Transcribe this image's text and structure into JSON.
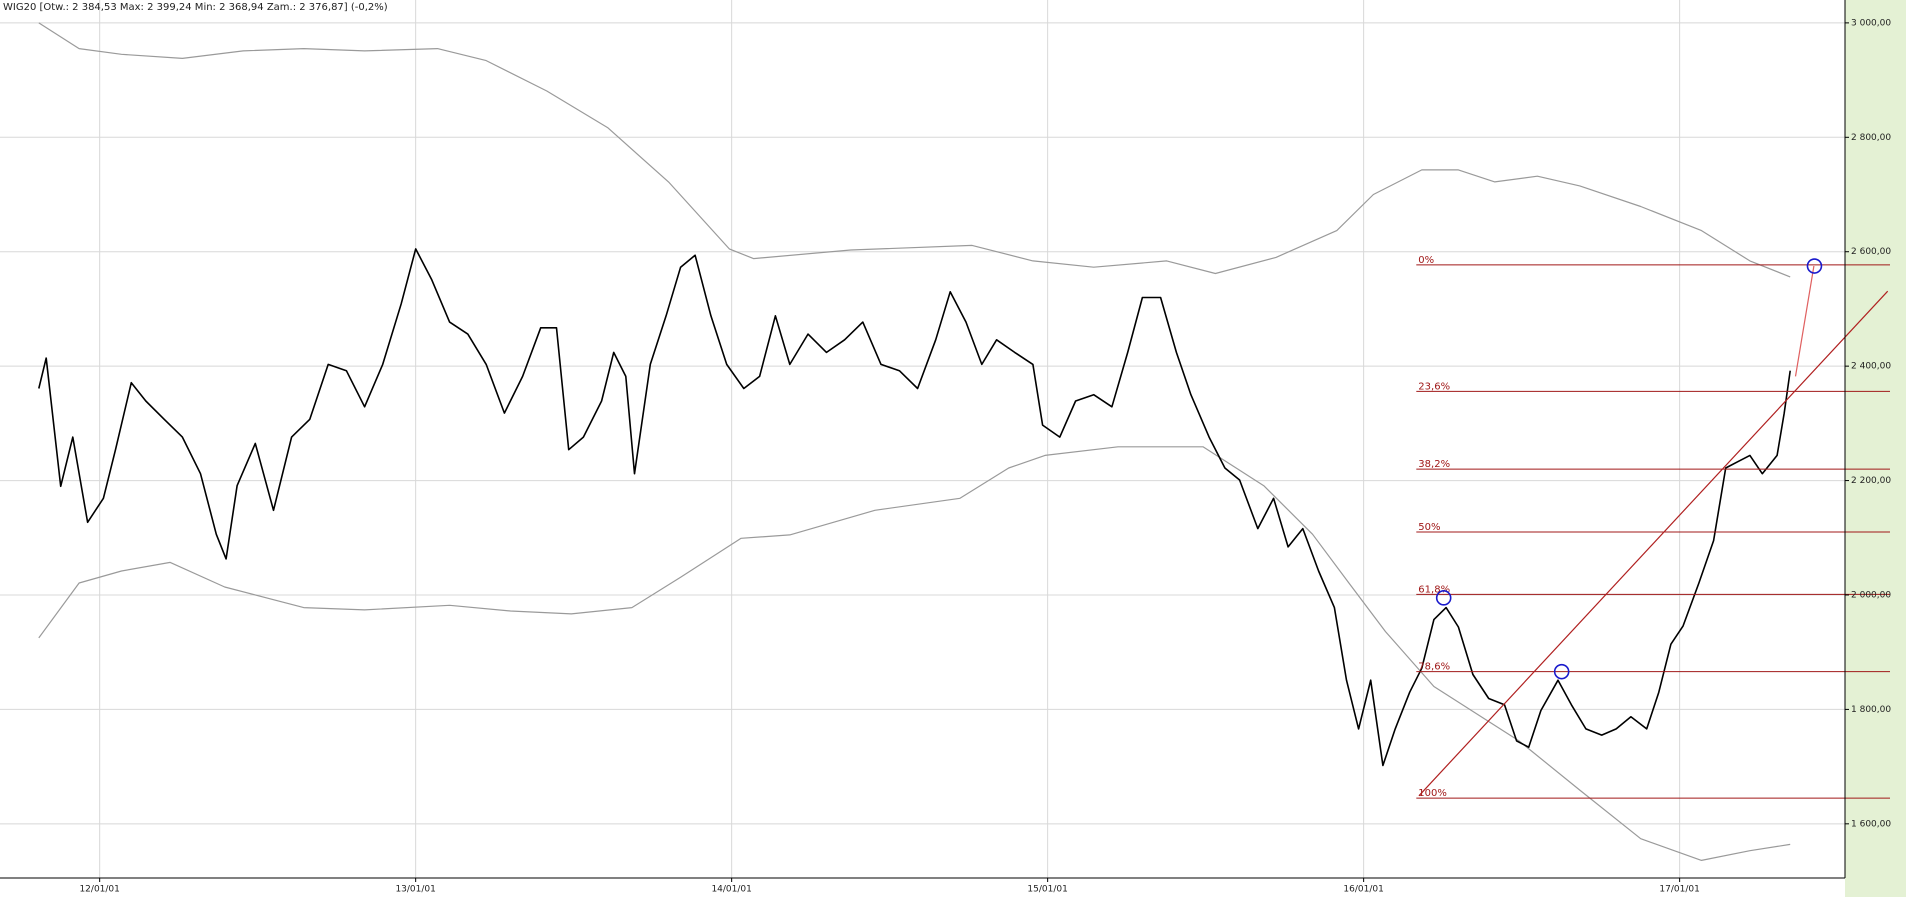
{
  "chart_data": {
    "type": "line",
    "title": "WIG20 [Otw.: 2 384,53  Max: 2 399,24  Min: 2 368,94  Zam.: 2 376,87] (-0,2%)",
    "xlim": [
      -3.785,
      66.28
    ],
    "ylim": [
      1506,
      3040
    ],
    "xticks": [
      {
        "value": 0,
        "label": "12/01/01"
      },
      {
        "value": 12,
        "label": "13/01/01"
      },
      {
        "value": 24,
        "label": "14/01/01"
      },
      {
        "value": 36,
        "label": "15/01/01"
      },
      {
        "value": 48,
        "label": "16/01/01"
      },
      {
        "value": 60,
        "label": "17/01/01"
      }
    ],
    "yticks": [
      {
        "value": 1600,
        "label": "1 600,00"
      },
      {
        "value": 1800,
        "label": "1 800,00"
      },
      {
        "value": 2000,
        "label": "2 000,00"
      },
      {
        "value": 2200,
        "label": "2 200,00"
      },
      {
        "value": 2400,
        "label": "2 400,00"
      },
      {
        "value": 2600,
        "label": "2 600,00"
      },
      {
        "value": 2800,
        "label": "2 800,00"
      },
      {
        "value": 3000,
        "label": "3 000,00"
      }
    ],
    "grid": true,
    "series": [
      {
        "color": "#000000",
        "x": [
          -2.31,
          -2.03,
          -1.48,
          -1.02,
          -0.46,
          0.14,
          0.6,
          1.2,
          1.75,
          2.45,
          3.14,
          3.83,
          4.43,
          4.8,
          5.22,
          5.91,
          6.6,
          7.29,
          7.98,
          8.68,
          9.37,
          10.06,
          10.75,
          11.45,
          12.0,
          12.6,
          13.29,
          13.98,
          14.68,
          15.37,
          16.06,
          16.75,
          17.35,
          17.81,
          18.37,
          19.06,
          19.52,
          19.98,
          20.31,
          20.91,
          21.51,
          22.06,
          22.61,
          23.21,
          23.81,
          24.46,
          25.06,
          25.66,
          26.21,
          26.9,
          27.6,
          28.29,
          28.98,
          29.67,
          30.37,
          31.06,
          31.75,
          32.3,
          32.9,
          33.5,
          34.06,
          34.75,
          35.44,
          35.81,
          36.46,
          37.06,
          37.75,
          38.44,
          39.04,
          39.6,
          40.29,
          40.89,
          41.44,
          42.13,
          42.73,
          43.29,
          43.98,
          44.58,
          45.13,
          45.69,
          46.29,
          46.89,
          47.35,
          47.81,
          48.27,
          48.73,
          49.2,
          49.75,
          50.21,
          50.67,
          51.13,
          51.6,
          52.15,
          52.75,
          53.35,
          53.81,
          54.27,
          54.73,
          55.38,
          55.89,
          56.44,
          57.04,
          57.59,
          58.15,
          58.75,
          59.21,
          59.67,
          60.13,
          60.73,
          61.29,
          61.75,
          62.21,
          62.67,
          63.14,
          63.7,
          63.97,
          64.2
        ],
        "values": [
          2361,
          2414,
          2190,
          2276,
          2127,
          2169,
          2254,
          2371,
          2339,
          2307,
          2276,
          2212,
          2106,
          2063,
          2191,
          2265,
          2148,
          2276,
          2307,
          2403,
          2392,
          2329,
          2403,
          2509,
          2605,
          2552,
          2477,
          2456,
          2403,
          2318,
          2382,
          2467,
          2467,
          2254,
          2276,
          2339,
          2424,
          2382,
          2212,
          2403,
          2488,
          2573,
          2594,
          2488,
          2403,
          2361,
          2382,
          2488,
          2403,
          2456,
          2424,
          2446,
          2477,
          2403,
          2392,
          2361,
          2446,
          2530,
          2477,
          2403,
          2446,
          2424,
          2403,
          2297,
          2276,
          2339,
          2350,
          2329,
          2424,
          2520,
          2520,
          2424,
          2350,
          2276,
          2222,
          2201,
          2116,
          2169,
          2084,
          2116,
          2042,
          1978,
          1851,
          1766,
          1851,
          1702,
          1766,
          1830,
          1872,
          1957,
          1978,
          1944,
          1861,
          1819,
          1808,
          1745,
          1734,
          1798,
          1851,
          1808,
          1766,
          1755,
          1766,
          1787,
          1766,
          1830,
          1914,
          1946,
          2021,
          2095,
          2222,
          2233,
          2244,
          2212,
          2244,
          2318,
          2392
        ]
      },
      {
        "color": "#9a9a9a",
        "x": [
          -2.31,
          -0.78,
          0.83,
          3.14,
          5.45,
          7.75,
          10.06,
          12.83,
          14.68,
          16.98,
          19.29,
          21.6,
          23.91,
          24.83,
          28.52,
          33.13,
          35.44,
          37.75,
          40.52,
          42.37,
          44.67,
          46.98,
          48.37,
          50.21,
          51.6,
          52.98,
          54.6,
          56.21,
          58.52,
          60.83,
          62.67,
          64.2
        ],
        "values": [
          3000,
          2955,
          2945,
          2938,
          2951,
          2955,
          2951,
          2955,
          2934,
          2881,
          2817,
          2722,
          2605,
          2588,
          2603,
          2611,
          2584,
          2573,
          2584,
          2562,
          2590,
          2637,
          2700,
          2743,
          2743,
          2722,
          2732,
          2715,
          2679,
          2637,
          2584,
          2556
        ]
      },
      {
        "color": "#9a9a9a",
        "x": [
          -2.31,
          -0.78,
          0.83,
          2.68,
          4.75,
          7.75,
          10.06,
          13.29,
          15.6,
          17.91,
          20.21,
          22.06,
          24.36,
          26.21,
          29.44,
          32.67,
          34.52,
          35.9,
          38.67,
          41.9,
          44.21,
          46.06,
          47.44,
          48.83,
          50.67,
          53.9,
          56.21,
          58.52,
          60.83,
          62.67,
          64.2
        ],
        "values": [
          1925,
          2021,
          2042,
          2057,
          2014,
          1978,
          1974,
          1982,
          1972,
          1967,
          1978,
          2031,
          2099,
          2105,
          2148,
          2169,
          2222,
          2244,
          2259,
          2259,
          2191,
          2106,
          2021,
          1936,
          1840,
          1745,
          1659,
          1574,
          1536,
          1553,
          1564
        ]
      }
    ],
    "fibonacci": {
      "color": "#a01818",
      "x_start": 50,
      "levels": [
        {
          "label": "0%",
          "value": 2577
        },
        {
          "label": "23,6%",
          "value": 2356
        },
        {
          "label": "38,2%",
          "value": 2220
        },
        {
          "label": "50%",
          "value": 2110
        },
        {
          "label": "61,8%",
          "value": 2001
        },
        {
          "label": "78,6%",
          "value": 1866
        },
        {
          "label": "100%",
          "value": 1645
        }
      ]
    },
    "trendline": {
      "color": "#b02020",
      "x": [
        50.1,
        67.9
      ],
      "values": [
        1649,
        2531
      ]
    },
    "arrow": {
      "color": "#e06060",
      "x": [
        64.4,
        65.1
      ],
      "values": [
        2382,
        2575
      ]
    },
    "markers": {
      "color": "#1a1acc",
      "x": [
        51.04,
        55.52,
        65.12
      ],
      "values": [
        1995,
        1866,
        2575
      ]
    }
  }
}
